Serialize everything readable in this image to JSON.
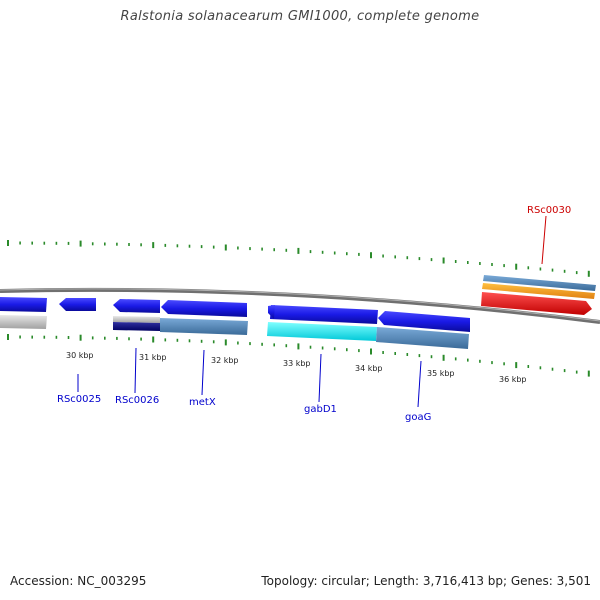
{
  "header": {
    "title": "Ralstonia solanacearum GMI1000, complete genome"
  },
  "footer": {
    "accession": "Accession: NC_003295",
    "summary": "Topology: circular; Length: 3,716,413 bp; Genes: 3,501"
  },
  "ruler_labels": [
    {
      "id": "kbp-30",
      "text": "30 kbp"
    },
    {
      "id": "kbp-31",
      "text": "31 kbp"
    },
    {
      "id": "kbp-32",
      "text": "32 kbp"
    },
    {
      "id": "kbp-33",
      "text": "33 kbp"
    },
    {
      "id": "kbp-34",
      "text": "34 kbp"
    },
    {
      "id": "kbp-35",
      "text": "35 kbp"
    },
    {
      "id": "kbp-36",
      "text": "36 kbp"
    }
  ],
  "gene_labels": [
    {
      "id": "rsc0025",
      "text": "RSc0025",
      "color": "#0000cc"
    },
    {
      "id": "rsc0026",
      "text": "RSc0026",
      "color": "#0000cc"
    },
    {
      "id": "metx",
      "text": "metX",
      "color": "#0000cc"
    },
    {
      "id": "gabd1",
      "text": "gabD1",
      "color": "#0000cc"
    },
    {
      "id": "goag",
      "text": "goaG",
      "color": "#0000cc"
    },
    {
      "id": "rsc0030",
      "text": "RSc0030",
      "color": "#cc0000"
    }
  ],
  "colors": {
    "forward_gene": "#1a1ae6",
    "grey_track": "#c8c8c8",
    "steelblue_track": "#5a8cbf",
    "cyan_track": "#19f0f0",
    "navy_track": "#0a0a80",
    "orange_track": "#f0a020",
    "red_gene": "#e61a1a",
    "backbone": "#808080",
    "tick": "#2a8a2a"
  }
}
